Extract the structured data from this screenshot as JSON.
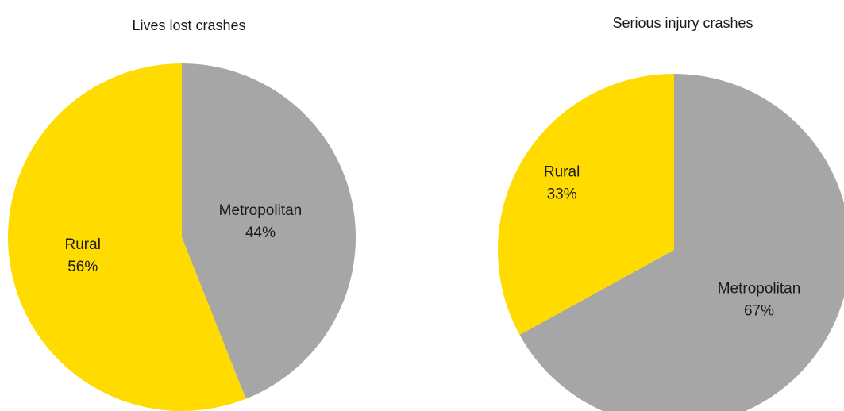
{
  "chart_data": [
    {
      "type": "pie",
      "title": "Lives lost crashes",
      "categories": [
        "Metropolitan",
        "Rural"
      ],
      "values": [
        44,
        56
      ],
      "value_labels": [
        "44%",
        "56%"
      ],
      "colors": [
        "#a6a6a6",
        "#ffdb00"
      ]
    },
    {
      "type": "pie",
      "title": "Serious injury crashes",
      "categories": [
        "Metropolitan",
        "Rural"
      ],
      "values": [
        67,
        33
      ],
      "value_labels": [
        "67%",
        "33%"
      ],
      "colors": [
        "#a6a6a6",
        "#ffdb00"
      ]
    }
  ]
}
